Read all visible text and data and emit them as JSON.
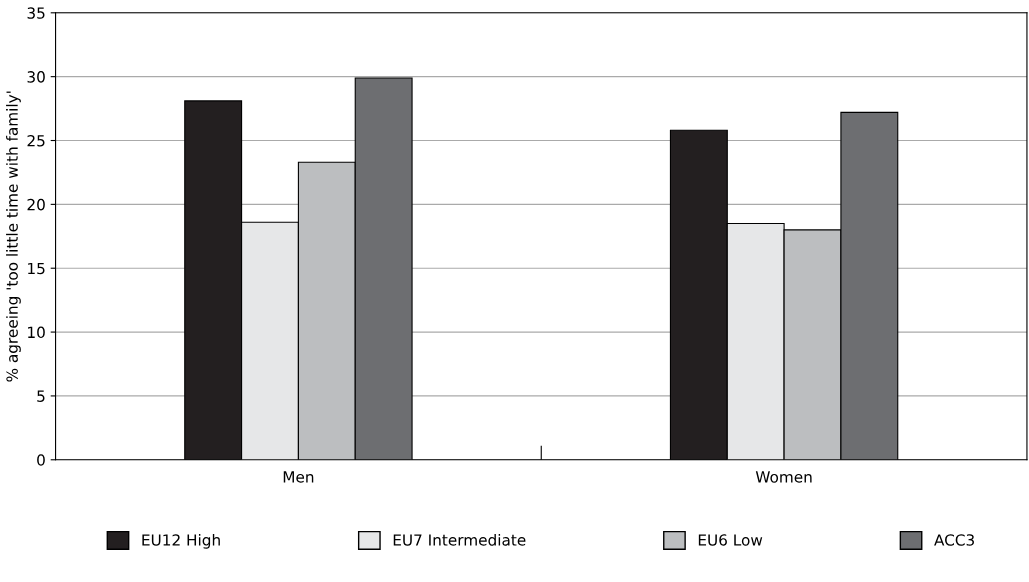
{
  "chart_data": {
    "type": "bar",
    "ylabel": "% agreeing 'too little time with family'",
    "categories": [
      "Men",
      "Women"
    ],
    "series": [
      {
        "name": "EU12 High",
        "color": "#231f20",
        "values": [
          28.1,
          25.8
        ]
      },
      {
        "name": "EU7 Intermediate",
        "color": "#e6e7e8",
        "values": [
          18.6,
          18.5
        ]
      },
      {
        "name": "EU6 Low",
        "color": "#bcbec0",
        "values": [
          23.3,
          18.0
        ]
      },
      {
        "name": "ACC3",
        "color": "#6d6e71",
        "values": [
          29.9,
          27.2
        ]
      }
    ],
    "ylim": [
      0,
      35
    ],
    "yticks": [
      0,
      5,
      10,
      15,
      20,
      25,
      30,
      35
    ],
    "grid": "y",
    "legend": "bottom"
  }
}
